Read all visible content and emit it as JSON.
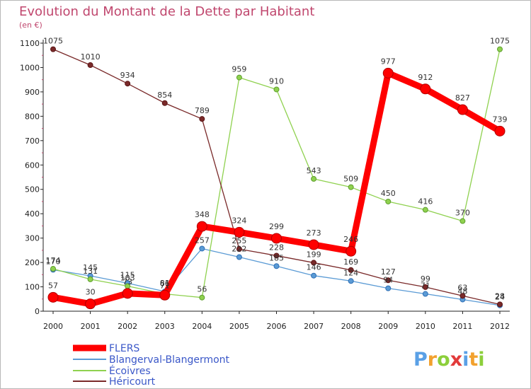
{
  "chart_data": {
    "type": "line",
    "title": "Evolution du Montant de la Dette par Habitant",
    "subtitle": "(en €)",
    "categories": [
      "2000",
      "2001",
      "2002",
      "2003",
      "2004",
      "2005",
      "2006",
      "2007",
      "2008",
      "2009",
      "2010",
      "2011",
      "2012"
    ],
    "ylim": [
      0,
      1100
    ],
    "yticks": [
      0,
      100,
      200,
      300,
      400,
      500,
      600,
      700,
      800,
      900,
      1000,
      1100
    ],
    "grid": false,
    "legend_position": "bottom-left",
    "series": [
      {
        "name": "FLERS",
        "color": "#ff0000",
        "values": [
          57,
          30,
          73,
          66,
          348,
          324,
          299,
          273,
          246,
          977,
          912,
          827,
          739
        ],
        "labels": [
          "57",
          "30",
          "73",
          "66",
          "348",
          "324",
          "299",
          "273",
          "246",
          "977",
          "912",
          "827",
          "739"
        ]
      },
      {
        "name": "Blangerval-Blangermont",
        "color": "#5b9bd5",
        "values": [
          170,
          145,
          115,
          81,
          257,
          222,
          185,
          146,
          124,
          94,
          71,
          48,
          24
        ],
        "labels": [
          "170",
          "145",
          "115",
          "81",
          "257",
          "222",
          "185",
          "146",
          "124",
          "94",
          "71",
          "48",
          "24"
        ]
      },
      {
        "name": "Écoivres",
        "color": "#8fd14f",
        "values": [
          174,
          131,
          103,
          71,
          56,
          959,
          910,
          543,
          509,
          450,
          416,
          370,
          1075
        ],
        "labels": [
          "174",
          "131",
          "103",
          "71",
          "56",
          "959",
          "910",
          "543",
          "509",
          "450",
          "416",
          "370",
          "1075"
        ]
      },
      {
        "name": "Héricourt",
        "color": "#7a2a2a",
        "values": [
          1075,
          1010,
          934,
          854,
          789,
          255,
          228,
          199,
          169,
          127,
          99,
          63,
          28
        ],
        "labels": [
          "1075",
          "1010",
          "934",
          "854",
          "789",
          "255",
          "228",
          "199",
          "169",
          "127",
          "99",
          "63",
          "28"
        ]
      }
    ]
  },
  "brand": {
    "text": "Proxiti",
    "letters": [
      {
        "ch": "P",
        "color": "#5aa0e6"
      },
      {
        "ch": "r",
        "color": "#f2a12e"
      },
      {
        "ch": "o",
        "color": "#8ccf3b"
      },
      {
        "ch": "x",
        "color": "#e23a3a"
      },
      {
        "ch": "i",
        "color": "#5aa0e6"
      },
      {
        "ch": "t",
        "color": "#f2a12e"
      },
      {
        "ch": "i",
        "color": "#8ccf3b"
      }
    ]
  }
}
